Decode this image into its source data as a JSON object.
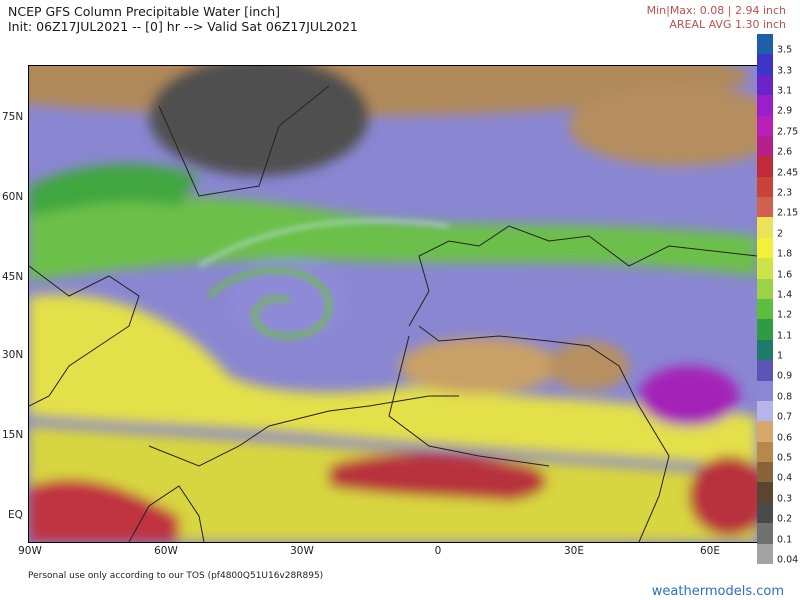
{
  "header": {
    "title": "NCEP GFS Column Precipitable Water [inch]",
    "subtitle": "Init: 06Z17JUL2021 -- [0] hr --> Valid Sat 06Z17JUL2021",
    "minmax": "Min|Max: 0.08 | 2.94 inch",
    "areal_avg": "AREAL AVG 1.30 inch"
  },
  "map": {
    "region": "North Atlantic, Europe, Africa",
    "lat_labels": [
      "75N",
      "60N",
      "45N",
      "30N",
      "15N",
      "EQ"
    ],
    "lon_labels": [
      "90W",
      "60W",
      "30W",
      "0",
      "30E",
      "60E"
    ]
  },
  "colorbar": {
    "levels": [
      "3.5",
      "3.3",
      "3.1",
      "2.9",
      "2.75",
      "2.6",
      "2.45",
      "2.3",
      "2.15",
      "2",
      "1.8",
      "1.6",
      "1.4",
      "1.2",
      "1.1",
      "1",
      "0.9",
      "0.8",
      "0.7",
      "0.6",
      "0.5",
      "0.4",
      "0.3",
      "0.2",
      "0.1",
      "0.04"
    ],
    "colors": [
      "#1d5fa8",
      "#3f34c9",
      "#6a22c9",
      "#9b1fc9",
      "#b81fb8",
      "#b51f8a",
      "#c02a3a",
      "#c8443b",
      "#d06050",
      "#e9e35a",
      "#f2f03a",
      "#cde34a",
      "#9bd24a",
      "#5fbd3e",
      "#2d9c45",
      "#1e7a6a",
      "#5b56b5",
      "#8b86d6",
      "#b7b4ea",
      "#d6a86b",
      "#b8874a",
      "#8a6238",
      "#5c4530",
      "#4a4a4a",
      "#707070",
      "#a3a3a3"
    ]
  },
  "footer": {
    "tos": "Personal use only according to our TOS (pf4800Q51U16v28R895)",
    "brand": "weathermodels.com"
  }
}
